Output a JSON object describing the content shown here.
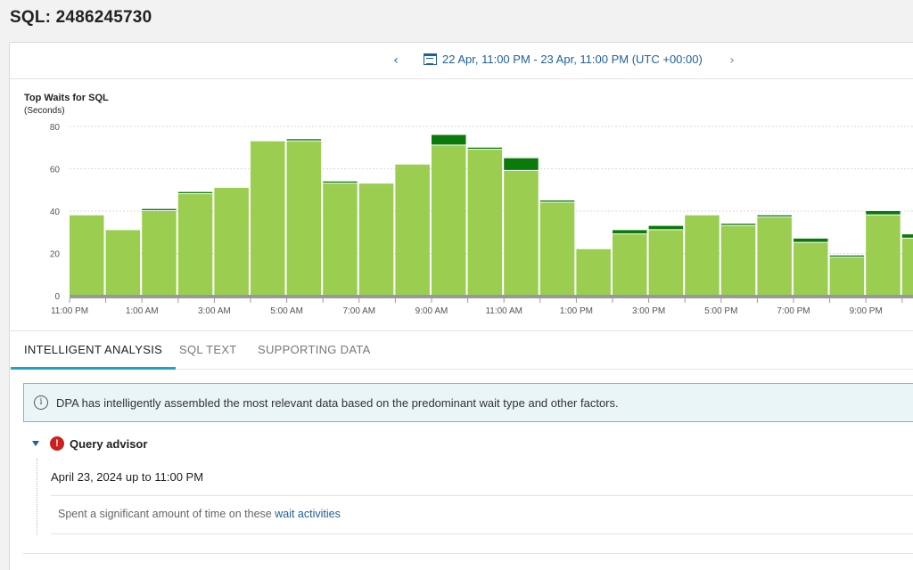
{
  "page": {
    "title": "SQL: 2486245730"
  },
  "time_range": {
    "label": "22 Apr, 11:00 PM - 23 Apr, 11:00 PM (UTC +00:00)"
  },
  "chart": {
    "title": "Top Waits for SQL",
    "subtitle": "(Seconds)"
  },
  "chart_data": {
    "type": "bar",
    "stacked": true,
    "title": "Top Waits for SQL",
    "ylabel": "(Seconds)",
    "ylim": [
      0,
      80
    ],
    "yticks": [
      0,
      20,
      40,
      60,
      80
    ],
    "xtick_labels": [
      "11:00 PM",
      "1:00 AM",
      "3:00 AM",
      "5:00 AM",
      "7:00 AM",
      "9:00 AM",
      "11:00 AM",
      "1:00 PM",
      "3:00 PM",
      "5:00 PM",
      "7:00 PM",
      "9:00 PM"
    ],
    "grid": true,
    "colors": {
      "light": "#9acd50",
      "dark": "#0a7a0a",
      "axis": "#999999"
    },
    "series": [
      {
        "values": [
          38,
          31,
          40,
          48,
          51,
          73,
          73,
          53,
          53,
          62,
          71,
          69,
          59,
          44,
          22,
          29,
          31,
          38,
          33,
          37,
          25,
          18,
          38,
          27
        ]
      },
      {
        "values": [
          0,
          0,
          1,
          1,
          0,
          0,
          1,
          1,
          0,
          0,
          5,
          1,
          6,
          1,
          0,
          2,
          2,
          0,
          1,
          1,
          2,
          1,
          2,
          2
        ]
      }
    ]
  },
  "tabs": [
    {
      "label": "INTELLIGENT ANALYSIS"
    },
    {
      "label": "SQL TEXT"
    },
    {
      "label": "SUPPORTING DATA"
    }
  ],
  "info": {
    "message": "DPA has intelligently assembled the most relevant data based on the predominant wait type and other factors."
  },
  "advisor": {
    "title": "Query advisor",
    "date": "April 23, 2024 up to 11:00 PM",
    "text": "Spent a significant amount of time on these",
    "link": "wait activities"
  }
}
